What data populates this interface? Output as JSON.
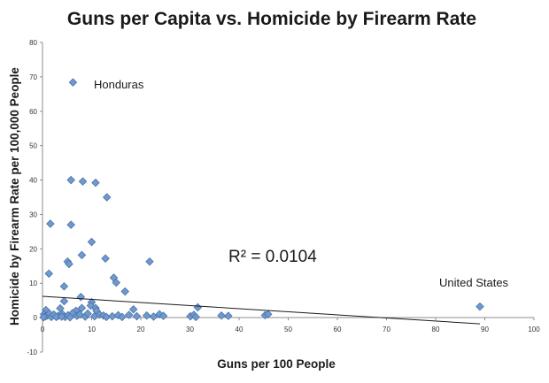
{
  "chart_data": {
    "type": "scatter",
    "title": "Guns per Capita vs. Homicide by Firearm Rate",
    "xlabel": "Guns per 100 People",
    "ylabel": "Homicide by Firearm Rate per 100,000 People",
    "xlim": [
      0,
      100
    ],
    "ylim": [
      -10,
      80
    ],
    "xticks": [
      "0",
      "10",
      "20",
      "30",
      "40",
      "50",
      "60",
      "70",
      "80",
      "90",
      "100"
    ],
    "yticks": [
      "80",
      "70",
      "60",
      "50",
      "40",
      "30",
      "20",
      "10",
      "0",
      "-10"
    ],
    "grid": false,
    "marker_color": "#6f99cf",
    "marker_edge_color": "#4a73a8",
    "trendline": {
      "x": [
        0,
        89
      ],
      "y": [
        6.2,
        -1.8
      ]
    },
    "annotations": {
      "honduras": "Honduras",
      "united_states": "United States",
      "r_squared": "R² = 0.0104"
    },
    "points": [
      [
        6.2,
        68.4
      ],
      [
        5.8,
        40.0
      ],
      [
        8.2,
        39.6
      ],
      [
        10.8,
        39.2
      ],
      [
        13.1,
        35.0
      ],
      [
        1.6,
        27.3
      ],
      [
        5.8,
        27.0
      ],
      [
        10.0,
        22.0
      ],
      [
        1.3,
        12.8
      ],
      [
        5.1,
        16.3
      ],
      [
        5.4,
        15.6
      ],
      [
        8.0,
        18.2
      ],
      [
        12.8,
        17.2
      ],
      [
        21.8,
        16.3
      ],
      [
        14.5,
        11.6
      ],
      [
        15.0,
        10.2
      ],
      [
        4.4,
        9.1
      ],
      [
        16.8,
        7.6
      ],
      [
        7.8,
        6.0
      ],
      [
        4.4,
        4.8
      ],
      [
        10.0,
        4.5
      ],
      [
        9.8,
        3.5
      ],
      [
        10.8,
        2.8
      ],
      [
        8.0,
        2.8
      ],
      [
        11.0,
        2.0
      ],
      [
        3.6,
        2.7
      ],
      [
        6.8,
        2.0
      ],
      [
        0.7,
        2.2
      ],
      [
        18.5,
        2.4
      ],
      [
        31.6,
        3.0
      ],
      [
        89.0,
        3.2
      ],
      [
        0.3,
        1.0
      ],
      [
        0.6,
        0.4
      ],
      [
        1.0,
        0.6
      ],
      [
        1.4,
        1.2
      ],
      [
        1.8,
        0.2
      ],
      [
        2.3,
        0.9
      ],
      [
        3.2,
        0.5
      ],
      [
        4.0,
        1.1
      ],
      [
        4.6,
        0.2
      ],
      [
        5.2,
        0.7
      ],
      [
        6.1,
        1.3
      ],
      [
        7.0,
        0.5
      ],
      [
        7.6,
        0.9
      ],
      [
        8.7,
        0.3
      ],
      [
        9.2,
        1.2
      ],
      [
        10.6,
        0.4
      ],
      [
        11.6,
        0.9
      ],
      [
        12.4,
        0.6
      ],
      [
        13.0,
        0.2
      ],
      [
        14.2,
        0.4
      ],
      [
        15.4,
        0.7
      ],
      [
        16.2,
        0.2
      ],
      [
        17.6,
        0.8
      ],
      [
        19.2,
        0.4
      ],
      [
        21.2,
        0.6
      ],
      [
        22.6,
        0.3
      ],
      [
        23.8,
        1.0
      ],
      [
        24.6,
        0.5
      ],
      [
        30.1,
        0.4
      ],
      [
        30.8,
        0.8
      ],
      [
        31.2,
        0.2
      ],
      [
        36.4,
        0.6
      ],
      [
        37.8,
        0.5
      ],
      [
        45.3,
        0.7
      ],
      [
        45.9,
        1.0
      ],
      [
        0.2,
        0.1
      ],
      [
        2.8,
        0.2
      ],
      [
        3.9,
        0.3
      ],
      [
        5.6,
        0.1
      ]
    ]
  }
}
